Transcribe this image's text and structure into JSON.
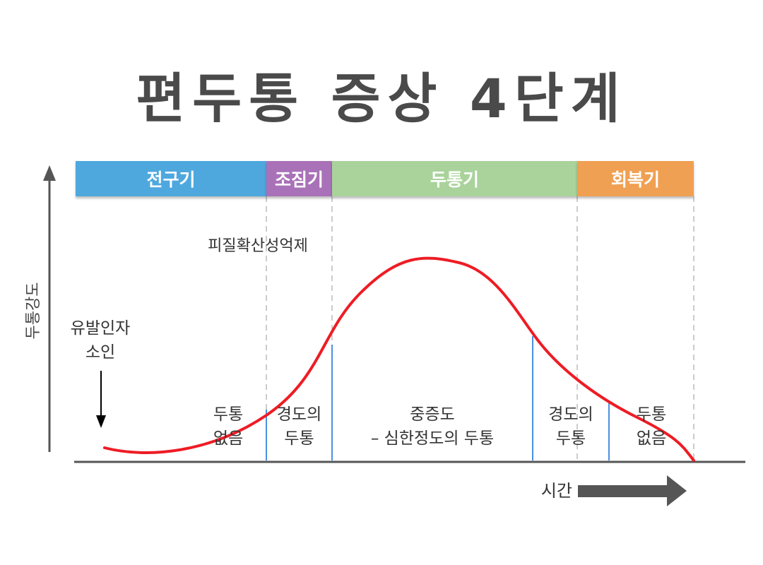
{
  "title": "편두통 증상 4단계",
  "phases": [
    {
      "label": "전구기",
      "color": "#4EA8DE"
    },
    {
      "label": "조짐기",
      "color": "#A972B8"
    },
    {
      "label": "두통기",
      "color": "#A9D39B"
    },
    {
      "label": "회복기",
      "color": "#F0A052"
    }
  ],
  "annotations": {
    "cortical": "피질확산성억제",
    "trigger_line1": "유발인자",
    "trigger_line2": "소인"
  },
  "axes": {
    "y_label": "두통강도",
    "x_label": "시간"
  },
  "stages": [
    {
      "line1": "두통",
      "line2": "없음"
    },
    {
      "line1": "경도의",
      "line2": "두통"
    },
    {
      "line1": "중증도",
      "line2": "– 심한정도의 두통"
    },
    {
      "line1": "경도의",
      "line2": "두통"
    },
    {
      "line1": "두통",
      "line2": "없음"
    }
  ],
  "colors": {
    "curve": "#EE1C24",
    "stage_line": "#4A90E2",
    "axis": "#555555",
    "dashed": "#BBBBBB"
  }
}
